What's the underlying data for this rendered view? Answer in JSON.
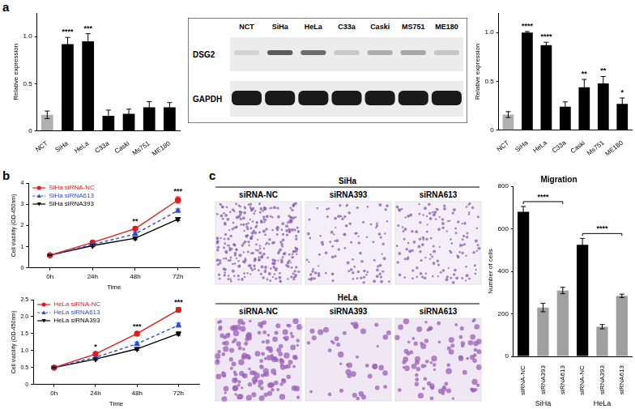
{
  "panel_labels": [
    "a",
    "b",
    "c"
  ],
  "blot": {
    "lanes": [
      "NCT",
      "SiHa",
      "HeLa",
      "C33a",
      "Caski",
      "MS751",
      "ME180"
    ],
    "rows": [
      "DSG2",
      "GAPDH"
    ]
  },
  "images": {
    "rows": [
      {
        "label": "SiHa",
        "columns": [
          "siRNA-NC",
          "siRNA393",
          "siRNA613"
        ]
      },
      {
        "label": "HeLa",
        "columns": [
          "siRNA-NC",
          "siRNA393",
          "siRNA613"
        ]
      }
    ]
  },
  "chart_data": [
    {
      "type": "bar",
      "y_label": "Relative expression",
      "categories": [
        "NCT",
        "SiHa",
        "HeLa",
        "C33a",
        "Caski",
        "Ms751",
        "ME180"
      ],
      "values": [
        0.17,
        0.92,
        0.95,
        0.16,
        0.18,
        0.25,
        0.25
      ],
      "errors": [
        0.04,
        0.07,
        0.08,
        0.06,
        0.05,
        0.06,
        0.05
      ],
      "colors": [
        "#b0b0b0",
        "#000000",
        "#000000",
        "#000000",
        "#000000",
        "#000000",
        "#000000"
      ],
      "ylim": [
        0,
        1.25
      ],
      "yticks": [
        0,
        0.5,
        {
          "value": 1,
          "label": "1.0"
        }
      ],
      "grid": false,
      "annotations": [
        {
          "category": "SiHa",
          "text": "****"
        },
        {
          "category": "HeLa",
          "text": "***"
        }
      ]
    },
    {
      "type": "bar",
      "y_label": "Relative expression",
      "categories": [
        "NCT",
        "SiHa",
        "HeLa",
        "C33a",
        "Caski",
        "Ms751",
        "ME180"
      ],
      "values": [
        0.16,
        1.0,
        0.87,
        0.24,
        0.44,
        0.48,
        0.27
      ],
      "errors": [
        0.03,
        0.01,
        0.03,
        0.05,
        0.08,
        0.07,
        0.06
      ],
      "colors": [
        "#b0b0b0",
        "#000000",
        "#000000",
        "#000000",
        "#000000",
        "#000000",
        "#000000"
      ],
      "ylim": [
        0,
        1.2
      ],
      "yticks": [
        0,
        0.5,
        {
          "value": 1,
          "label": "1.0"
        }
      ],
      "grid": false,
      "annotations": [
        {
          "category": "SiHa",
          "text": "****"
        },
        {
          "category": "HeLa",
          "text": "****"
        },
        {
          "category": "Caski",
          "text": "**"
        },
        {
          "category": "Ms751",
          "text": "**"
        },
        {
          "category": "ME180",
          "text": "*"
        }
      ]
    },
    {
      "type": "line",
      "x_label": "Time",
      "y_label": "Cell viability (OD-450nm)",
      "categories": [
        "0h",
        "24h",
        "48h",
        "72h"
      ],
      "series": [
        {
          "name": "SiHa siRNA-NC",
          "color": "#e41a1c",
          "marker": "circle",
          "line_style": "solid",
          "values": [
            0.6,
            1.2,
            1.85,
            3.2
          ],
          "errors": [
            0.02,
            0.05,
            0.08,
            0.15
          ]
        },
        {
          "name": "SiHa siRNA613",
          "color": "#2b4bd6",
          "marker": "triangle",
          "line_style": "dashed",
          "values": [
            0.6,
            1.1,
            1.6,
            2.7
          ],
          "errors": [
            0.02,
            0.05,
            0.07,
            0.08
          ]
        },
        {
          "name": "SiHa siRNA393",
          "color": "#000000",
          "marker": "triangle-down",
          "line_style": "solid",
          "values": [
            0.6,
            1.05,
            1.4,
            2.3
          ],
          "errors": [
            0.02,
            0.05,
            0.07,
            0.07
          ]
        }
      ],
      "ylim": [
        0,
        4
      ],
      "yticks": [
        0,
        1,
        2,
        3,
        4
      ],
      "grid": false,
      "legend": "top-left",
      "annotations": [
        {
          "category": "48h",
          "text": "**"
        },
        {
          "category": "72h",
          "text": "***"
        }
      ]
    },
    {
      "type": "line",
      "x_label": "Time",
      "y_label": "Cell viability (OD-450nm)",
      "categories": [
        "0h",
        "24h",
        "48h",
        "72h"
      ],
      "series": [
        {
          "name": "HeLa siRNA-NC",
          "color": "#e41a1c",
          "marker": "circle",
          "line_style": "solid",
          "values": [
            0.5,
            0.9,
            1.5,
            2.2
          ],
          "errors": [
            0.02,
            0.04,
            0.05,
            0.07
          ]
        },
        {
          "name": "HeLa siRNA613",
          "color": "#2b4bd6",
          "marker": "triangle",
          "line_style": "dashed",
          "values": [
            0.5,
            0.8,
            1.2,
            1.75
          ],
          "errors": [
            0.02,
            0.04,
            0.05,
            0.06
          ]
        },
        {
          "name": "HeLa siRNA393",
          "color": "#000000",
          "marker": "triangle-down",
          "line_style": "solid",
          "values": [
            0.5,
            0.75,
            1.05,
            1.5
          ],
          "errors": [
            0.02,
            0.03,
            0.04,
            0.05
          ]
        }
      ],
      "ylim": [
        0,
        2.5
      ],
      "yticks": [
        0,
        0.5,
        {
          "value": 1,
          "label": "1.0"
        },
        1.5,
        {
          "value": 2,
          "label": "2.0"
        },
        2.5
      ],
      "grid": false,
      "legend": "top-left",
      "annotations": [
        {
          "category": "24h",
          "text": "*"
        },
        {
          "category": "48h",
          "text": "***"
        },
        {
          "category": "72h",
          "text": "***"
        }
      ]
    },
    {
      "type": "bar",
      "title": "Migration",
      "y_label": "Number of cells",
      "categories": [
        "siRNA-NC",
        "siRNA393",
        "siRNA613",
        "siRNA-NC",
        "siRNA393",
        "siRNA613"
      ],
      "groups": [
        "SiHa",
        "SiHa",
        "SiHa",
        "HeLa",
        "HeLa",
        "HeLa"
      ],
      "values": [
        680,
        230,
        310,
        525,
        140,
        285
      ],
      "errors": [
        25,
        20,
        15,
        30,
        10,
        8
      ],
      "colors": [
        "#000000",
        "#a0a0a0",
        "#a0a0a0",
        "#000000",
        "#a0a0a0",
        "#a0a0a0"
      ],
      "ylim": [
        0,
        800
      ],
      "yticks": [
        0,
        200,
        400,
        600,
        800
      ],
      "grid": false,
      "annotations": [
        {
          "span": [
            0,
            2
          ],
          "text": "****"
        },
        {
          "span": [
            3,
            5
          ],
          "text": "****"
        }
      ]
    }
  ]
}
